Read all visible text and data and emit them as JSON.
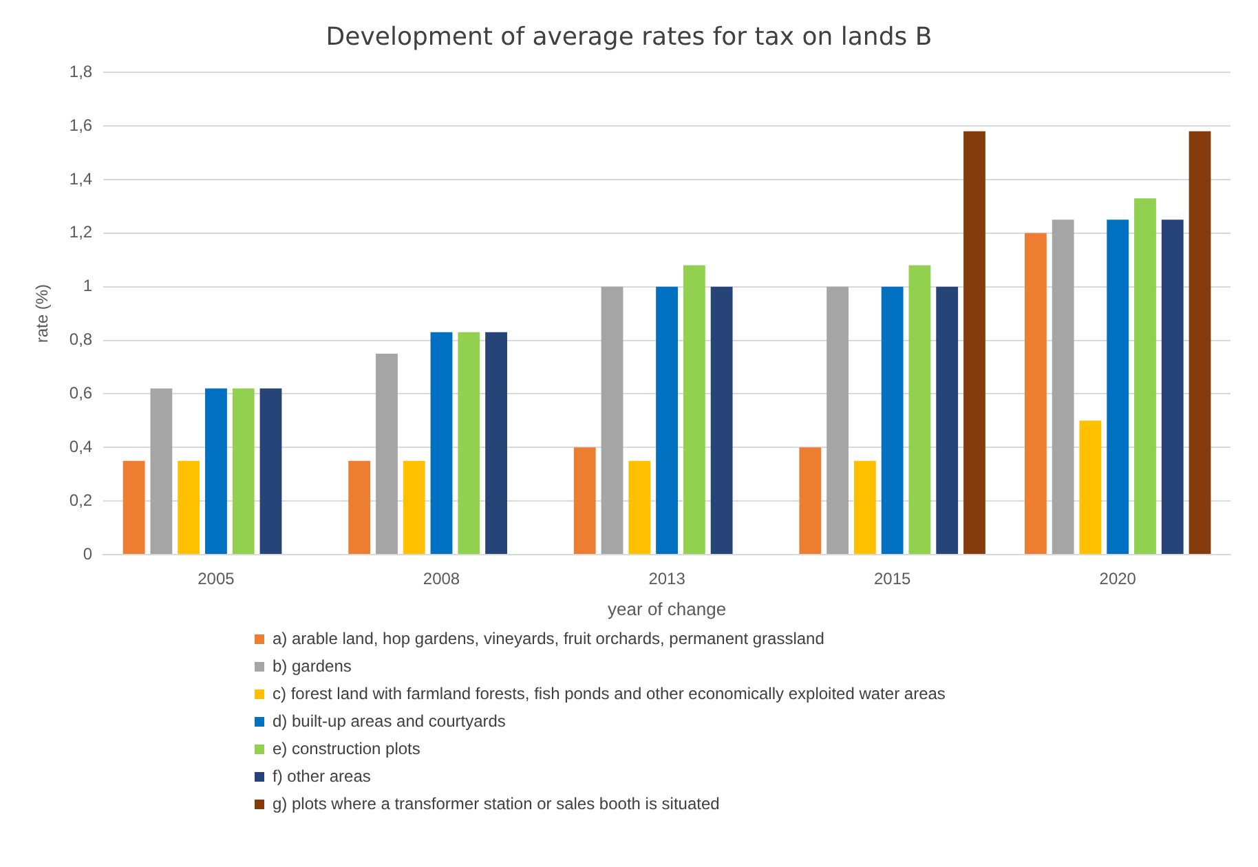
{
  "chart_data": {
    "type": "bar",
    "title": "Development of average rates for tax on lands B",
    "xlabel": "year of change",
    "ylabel": "rate (%)",
    "categories": [
      "2005",
      "2008",
      "2013",
      "2015",
      "2020"
    ],
    "series": [
      {
        "name": "a) arable land, hop gardens, vineyards, fruit orchards, permanent grassland",
        "color": "#ed7d31",
        "values": [
          0.35,
          0.35,
          0.4,
          0.4,
          1.2
        ]
      },
      {
        "name": "b) gardens",
        "color": "#a5a5a5",
        "values": [
          0.62,
          0.75,
          1,
          1,
          1.25
        ]
      },
      {
        "name": "c) forest land with farmland forests, fish ponds and other economically exploited water areas",
        "color": "#ffc000",
        "values": [
          0.35,
          0.35,
          0.35,
          0.35,
          0.5
        ]
      },
      {
        "name": "d) built-up areas and courtyards",
        "color": "#0070c0",
        "values": [
          0.62,
          0.83,
          1,
          1,
          1.25
        ]
      },
      {
        "name": "e) construction plots",
        "color": "#92d050",
        "values": [
          0.62,
          0.83,
          1.08,
          1.08,
          1.33
        ]
      },
      {
        "name": "f) other areas",
        "color": "#264478",
        "values": [
          0.62,
          0.83,
          1,
          1,
          1.25
        ]
      },
      {
        "name": "g) plots where a transformer station or sales booth is situated",
        "color": "#843c0c",
        "values": [
          null,
          null,
          null,
          1.58,
          1.58
        ]
      }
    ],
    "ylim": [
      0,
      1.8
    ],
    "yticks": [
      {
        "value": 0,
        "label": "0"
      },
      {
        "value": 0.2,
        "label": "0,2"
      },
      {
        "value": 0.4,
        "label": "0,4"
      },
      {
        "value": 0.6,
        "label": "0,6"
      },
      {
        "value": 0.8,
        "label": "0,8"
      },
      {
        "value": 1,
        "label": "1"
      },
      {
        "value": 1.2,
        "label": "1,2"
      },
      {
        "value": 1.4,
        "label": "1,4"
      },
      {
        "value": 1.6,
        "label": "1,6"
      },
      {
        "value": 1.8,
        "label": "1,8"
      }
    ],
    "grid": "y",
    "legend": "bottom"
  }
}
